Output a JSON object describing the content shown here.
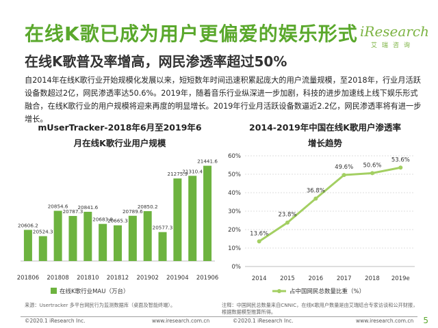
{
  "slide": {
    "title": "在线K歌已成为用户更偏爱的娱乐形式",
    "subtitle": "在线K歌普及率增高，网民渗透率超过50%",
    "paragraph": "自2014年在线K歌行业开始规模化发展以来，短短数年时间迅速积累起庞大的用户流量规模，至2018年，行业月活跃设备数超过2亿，网民渗透率达50.6%。2019年，随着音乐行业纵深进一步加剧，科技的进步加速线上线下娱乐形式融合，在线K歌行业的用户规模将迎来再度的明显增长。2019年行业月活跃设备数逼近2.2亿，网民渗透率将有进一步增长。",
    "page_number": "5"
  },
  "logo": {
    "main": "iResearch",
    "sub": "艾瑞咨询"
  },
  "footer": {
    "left_copyright": "©2020.1 iResearch Inc.",
    "left_url": "www.iresearch.com.cn",
    "right_copyright": "©2020.1 iResearch Inc.",
    "right_url": "www.iresearch.com.cn"
  },
  "left_source": "来源：Usertracker 多平台网民行为监测数据库（桌面及智能终端）。",
  "right_source_line1": "注释：中国网民总数量来自CNNIC，在线K歌用户数量是由艾瑞结合专家访谈和公开财报，",
  "right_source_line2": "根据数据模型推算所得。",
  "colors": {
    "brand_green": "#5aa82c",
    "bar_green": "#6db33f",
    "line_green": "#a3cf62"
  },
  "chart_data": [
    {
      "type": "bar",
      "title_line1": "mUserTracker-2018年6月至2019年6",
      "title_line2": "月在线K歌行业用户规模",
      "categories": [
        "201806",
        "201807",
        "201808",
        "201809",
        "201810",
        "201811",
        "201812",
        "201901",
        "201902",
        "201903",
        "201904",
        "201905",
        "201906"
      ],
      "x_tick_labels": [
        "201806",
        "",
        "201808",
        "",
        "201810",
        "",
        "201812",
        "",
        "201902",
        "",
        "201904",
        "",
        "201906"
      ],
      "series": [
        {
          "name": "在线K歌行业MAU（万台）",
          "values": [
            20606.2,
            20524.3,
            20854.6,
            20787.3,
            20841.6,
            20683.8,
            20665.3,
            20789.6,
            20850.2,
            20577.3,
            21275.9,
            21310.4,
            21441.6
          ]
        }
      ],
      "value_labels": [
        "20606.2",
        "20524.3",
        "20854.6",
        "20787.3",
        "20841.6",
        "20683.8",
        "20665.3",
        "20789.6",
        "20850.2",
        "20577.3",
        "21275.9",
        "21310.4",
        "21441.6"
      ],
      "legend_position": "bottom"
    },
    {
      "type": "line",
      "title_line1": "2014-2019年中国在线K歌用户渗透率",
      "title_line2": "增长趋势",
      "x": [
        "2014",
        "2015",
        "2016",
        "2017",
        "2018",
        "2019e"
      ],
      "series": [
        {
          "name": "占中国网民总数量比重（%）",
          "values": [
            13.6,
            23.8,
            36.8,
            49.6,
            50.6,
            53.6
          ]
        }
      ],
      "value_labels": [
        "13.6%",
        "23.8%",
        "36.8%",
        "49.6%",
        "50.6%",
        "53.6%"
      ],
      "y_ticks": [
        "0%",
        "10%",
        "20%",
        "30%",
        "40%",
        "50%",
        "60%"
      ],
      "ylim": [
        0,
        60
      ],
      "grid": true,
      "legend_position": "bottom"
    }
  ]
}
